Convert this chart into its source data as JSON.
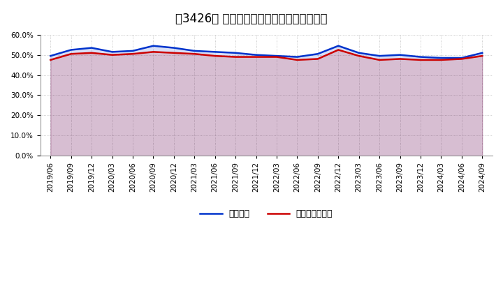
{
  "title": "［3426］ 固定比率、固定長期適合率の推移",
  "fixed_ratio": {
    "label": "固定比率",
    "color": "#0033CC",
    "dates": [
      "2019/06",
      "2019/09",
      "2019/12",
      "2020/03",
      "2020/06",
      "2020/09",
      "2020/12",
      "2021/03",
      "2021/06",
      "2021/09",
      "2021/12",
      "2022/03",
      "2022/06",
      "2022/09",
      "2022/12",
      "2023/03",
      "2023/06",
      "2023/09",
      "2023/12",
      "2024/03",
      "2024/06",
      "2024/09"
    ],
    "values": [
      49.5,
      52.5,
      53.5,
      51.5,
      52.0,
      54.5,
      53.5,
      52.0,
      51.5,
      51.0,
      50.0,
      49.5,
      49.0,
      50.5,
      54.5,
      51.0,
      49.5,
      50.0,
      49.0,
      48.5,
      48.5,
      51.0
    ]
  },
  "fixed_long_ratio": {
    "label": "固定長期適合率",
    "color": "#CC0000",
    "dates": [
      "2019/06",
      "2019/09",
      "2019/12",
      "2020/03",
      "2020/06",
      "2020/09",
      "2020/12",
      "2021/03",
      "2021/06",
      "2021/09",
      "2021/12",
      "2022/03",
      "2022/06",
      "2022/09",
      "2022/12",
      "2023/03",
      "2023/06",
      "2023/09",
      "2023/12",
      "2024/03",
      "2024/06",
      "2024/09"
    ],
    "values": [
      47.5,
      50.5,
      51.0,
      50.0,
      50.5,
      51.5,
      51.0,
      50.5,
      49.5,
      49.0,
      49.0,
      49.0,
      47.5,
      48.0,
      52.5,
      49.5,
      47.5,
      48.0,
      47.5,
      47.5,
      48.0,
      49.5
    ]
  },
  "ylim": [
    0,
    60
  ],
  "yticks": [
    0.0,
    10.0,
    20.0,
    30.0,
    40.0,
    50.0,
    60.0
  ],
  "background_color": "#ffffff",
  "plot_area_color": "#ffffff",
  "grid_color": "#bbbbbb",
  "title_fontsize": 12,
  "legend_fontsize": 9,
  "tick_fontsize": 7.5
}
